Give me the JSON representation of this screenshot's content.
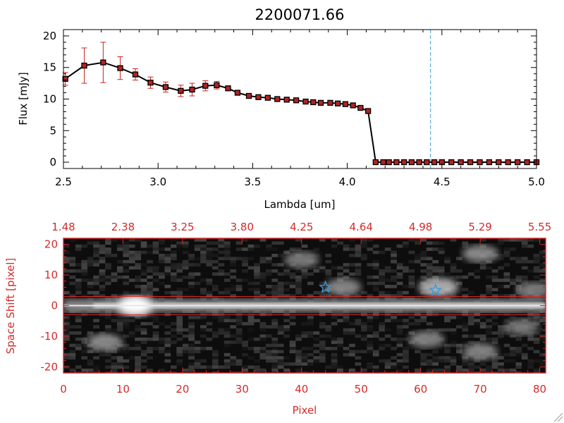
{
  "figure_title": "2200071.66",
  "chart_data": [
    {
      "type": "line",
      "title": "2200071.66",
      "xlabel": "Lambda [um]",
      "ylabel": "Flux [mJy]",
      "xlim": [
        2.5,
        5.0
      ],
      "ylim": [
        -1,
        21
      ],
      "x_ticks": [
        "2.5",
        "3.0",
        "3.5",
        "4.0",
        "4.5",
        "5.0"
      ],
      "y_ticks": [
        "0",
        "5",
        "10",
        "15",
        "20"
      ],
      "grid": false,
      "vertical_line": {
        "x": 4.44,
        "style": "dashed",
        "color": "#3a9bd9"
      },
      "series": [
        {
          "color": "#000000",
          "marker_color": "#b22222",
          "errorbar_color": "#cc2222",
          "x": [
            2.51,
            2.61,
            2.71,
            2.8,
            2.88,
            2.96,
            3.04,
            3.12,
            3.18,
            3.25,
            3.31,
            3.37,
            3.42,
            3.48,
            3.53,
            3.58,
            3.63,
            3.68,
            3.73,
            3.78,
            3.82,
            3.86,
            3.91,
            3.95,
            3.99,
            4.03,
            4.07,
            4.11,
            4.15,
            4.19,
            4.22,
            4.26,
            4.3,
            4.34,
            4.38,
            4.42,
            4.46,
            4.5,
            4.55,
            4.6,
            4.65,
            4.7,
            4.75,
            4.8,
            4.85,
            4.9,
            4.95,
            5.0
          ],
          "y": [
            13.2,
            15.3,
            15.8,
            14.9,
            13.9,
            12.6,
            11.9,
            11.3,
            11.5,
            12.1,
            12.2,
            11.7,
            11.0,
            10.5,
            10.3,
            10.2,
            10.0,
            9.9,
            9.8,
            9.6,
            9.5,
            9.4,
            9.4,
            9.3,
            9.2,
            9.0,
            8.6,
            8.1,
            0,
            0,
            0,
            0,
            0,
            0,
            0,
            0,
            0,
            0,
            0,
            0,
            0,
            0,
            0,
            0,
            0,
            0,
            0,
            0
          ],
          "yerr": [
            1.0,
            2.8,
            3.2,
            1.8,
            0.9,
            0.9,
            0.8,
            0.9,
            1.0,
            0.8,
            0.6,
            0.3,
            0,
            0,
            0,
            0,
            0,
            0,
            0,
            0,
            0,
            0,
            0,
            0,
            0,
            0,
            0,
            0,
            0,
            0,
            0,
            0,
            0,
            0,
            0,
            0,
            0,
            0,
            0,
            0,
            0,
            0,
            0,
            0,
            0,
            0,
            0,
            0
          ]
        }
      ]
    },
    {
      "type": "heatmap",
      "xlabel": "Pixel",
      "ylabel": "Space Shift [pixel]",
      "xlim": [
        0,
        81
      ],
      "ylim": [
        -22,
        22
      ],
      "x_ticks": [
        "0",
        "10",
        "20",
        "30",
        "40",
        "50",
        "60",
        "70",
        "80"
      ],
      "y_ticks": [
        "-20",
        "-10",
        "0",
        "10",
        "20"
      ],
      "top_ticks": [
        "1.48",
        "2.38",
        "3.25",
        "3.80",
        "4.25",
        "4.64",
        "4.98",
        "5.29",
        "5.55"
      ],
      "axis_color": "#d42a2a",
      "aperture_lines_y": [
        3,
        -3
      ],
      "trace": {
        "y_center": 0,
        "brightest_x": 12
      },
      "blobs": [
        {
          "x": 7,
          "y": -12,
          "v": 0.55
        },
        {
          "x": 12,
          "y": 0,
          "v": 1.0
        },
        {
          "x": 40,
          "y": 15,
          "v": 0.45
        },
        {
          "x": 47,
          "y": 6,
          "v": 0.55
        },
        {
          "x": 63,
          "y": 6,
          "v": 0.85
        },
        {
          "x": 61,
          "y": -11,
          "v": 0.5
        },
        {
          "x": 70,
          "y": 17,
          "v": 0.55
        },
        {
          "x": 70,
          "y": -15,
          "v": 0.5
        },
        {
          "x": 79,
          "y": 5,
          "v": 0.45
        },
        {
          "x": 77,
          "y": -7,
          "v": 0.4
        }
      ],
      "stars": [
        {
          "x": 44,
          "y": 6,
          "color": "#3a9bd9"
        },
        {
          "x": 62.5,
          "y": 5,
          "color": "#3a9bd9"
        }
      ]
    }
  ]
}
